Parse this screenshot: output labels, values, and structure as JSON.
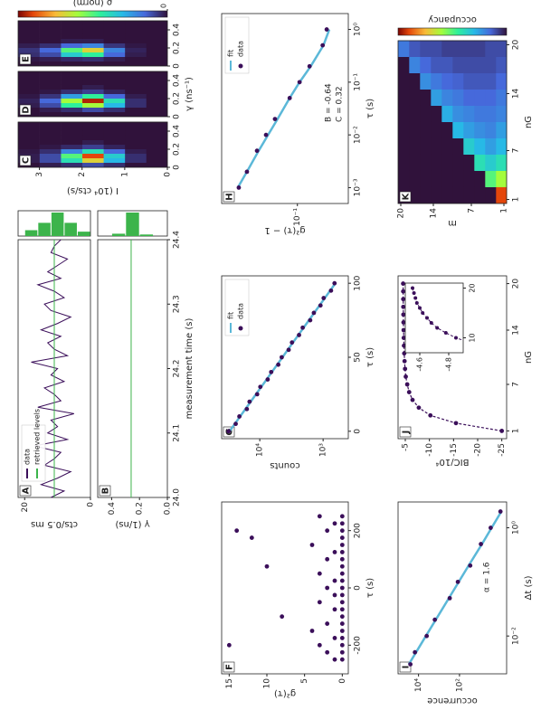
{
  "chart_data": [
    {
      "type": "line",
      "label": "A",
      "ylabel": "cts/0.5 ms",
      "x": [
        24,
        24.01,
        24.02,
        24.03,
        24.04,
        24.05,
        24.06,
        24.07,
        24.08,
        24.09,
        24.1,
        24.11,
        24.12,
        24.13,
        24.14,
        24.15,
        24.16,
        24.17,
        24.18,
        24.19,
        24.2,
        24.21,
        24.22,
        24.23,
        24.24,
        24.25,
        24.26,
        24.27,
        24.28,
        24.29,
        24.3,
        24.31,
        24.32,
        24.33,
        24.34,
        24.35,
        24.36,
        24.37,
        24.38,
        24.39,
        24.4
      ],
      "series": [
        {
          "name": "data",
          "color": "#3b0f5a",
          "values": [
            12,
            8,
            15,
            10,
            6,
            14,
            11,
            9,
            17,
            7,
            13,
            10,
            12,
            5,
            16,
            9,
            11,
            14,
            8,
            12,
            10,
            18,
            7,
            11,
            13,
            9,
            15,
            10,
            6,
            12,
            14,
            8,
            11,
            16,
            9,
            13,
            10,
            7,
            12,
            11,
            9
          ]
        },
        {
          "name": "retrieved levels",
          "color": "#3cb44b",
          "values": [
            11,
            11,
            11,
            11,
            11,
            11,
            11,
            11,
            11,
            11,
            11,
            11,
            11,
            11,
            11,
            11,
            11,
            11,
            11,
            11,
            11,
            11,
            11,
            11,
            11,
            11,
            11,
            11,
            11,
            11,
            11,
            11,
            11,
            11,
            11,
            11,
            11,
            11,
            11,
            11,
            11
          ]
        }
      ],
      "legend": "upper left",
      "xlim": [
        24,
        24.4
      ],
      "ylim": [
        0,
        22
      ],
      "yticks": [
        0,
        20
      ],
      "histogram": {
        "bins": [
          0,
          4,
          8,
          12,
          16,
          20
        ],
        "counts": [
          3,
          9,
          16,
          9,
          4
        ],
        "color": "#3cb44b"
      }
    },
    {
      "type": "line",
      "label": "B",
      "ylabel": "γ (1/ns)",
      "xlabel": "measurement time (s)",
      "x": [
        24,
        24.01,
        24.02,
        24.03,
        24.04,
        24.05,
        24.06,
        24.07,
        24.08,
        24.09,
        24.1,
        24.11,
        24.12,
        24.13,
        24.14,
        24.15,
        24.16,
        24.17,
        24.18,
        24.19,
        24.2,
        24.21,
        24.22,
        24.23,
        24.24,
        24.25,
        24.26,
        24.27,
        24.28,
        24.29,
        24.3,
        24.31,
        24.32,
        24.33,
        24.34,
        24.35,
        24.36,
        24.37,
        24.38,
        24.39,
        24.4
      ],
      "values": [
        0.26,
        0.26,
        0.26,
        0.26,
        0.26,
        0.26,
        0.26,
        0.26,
        0.26,
        0.26,
        0.26,
        0.26,
        0.26,
        0.26,
        0.26,
        0.26,
        0.26,
        0.26,
        0.26,
        0.26,
        0.26,
        0.26,
        0.26,
        0.26,
        0.26,
        0.26,
        0.26,
        0.26,
        0.26,
        0.26,
        0.26,
        0.26,
        0.26,
        0.26,
        0.26,
        0.26,
        0.26,
        0.26,
        0.26,
        0.26,
        0.26
      ],
      "color": "#3cb44b",
      "xlim": [
        24,
        24.4
      ],
      "ylim": [
        0,
        0.5
      ],
      "xticks": [
        {
          "value": 24,
          "label": "24.0"
        },
        24.1,
        24.2,
        24.3,
        24.4
      ],
      "yticks": [
        {
          "value": 0,
          "label": "0.0"
        },
        0.2,
        0.4
      ],
      "histogram": {
        "bins": [
          0,
          0.1,
          0.2,
          0.3,
          0.4,
          0.5
        ],
        "counts": [
          0,
          2,
          30,
          3,
          0
        ],
        "color": "#3cb44b"
      }
    },
    {
      "type": "heatmap",
      "label": "C",
      "ylabel": "I (10⁴ cts/s)",
      "colormap": "turbo",
      "zlim": [
        0,
        1
      ],
      "xlim": [
        0,
        0.5
      ],
      "ylim": [
        0,
        3.5
      ],
      "xticks": [
        0,
        0.2,
        0.4
      ],
      "yticks": [
        0,
        1,
        2,
        3
      ],
      "z": [
        [
          0,
          0,
          0,
          0,
          0,
          0,
          0,
          0,
          0,
          0
        ],
        [
          0,
          0.05,
          0.05,
          0.02,
          0,
          0,
          0,
          0,
          0,
          0
        ],
        [
          0.05,
          0.3,
          0.35,
          0.15,
          0.03,
          0,
          0,
          0,
          0,
          0
        ],
        [
          0.1,
          0.7,
          0.9,
          0.4,
          0.08,
          0.02,
          0,
          0,
          0,
          0
        ],
        [
          0.05,
          0.4,
          0.5,
          0.2,
          0.04,
          0,
          0,
          0,
          0,
          0
        ],
        [
          0.02,
          0.1,
          0.1,
          0.05,
          0.01,
          0,
          0,
          0,
          0,
          0
        ],
        [
          0,
          0.02,
          0.02,
          0.01,
          0,
          0,
          0,
          0,
          0,
          0
        ]
      ]
    },
    {
      "type": "heatmap",
      "label": "D",
      "xlabel": "γ (ns⁻¹)",
      "colormap": "turbo",
      "zlim": [
        0,
        1
      ],
      "xlim": [
        0,
        0.5
      ],
      "ylim": [
        0,
        3.5
      ],
      "xticks": [
        0,
        0.2,
        0.4
      ],
      "z": [
        [
          0,
          0,
          0,
          0,
          0,
          0,
          0,
          0,
          0,
          0
        ],
        [
          0,
          0,
          0.05,
          0.05,
          0.02,
          0,
          0,
          0,
          0,
          0
        ],
        [
          0,
          0.05,
          0.3,
          0.4,
          0.15,
          0.03,
          0,
          0,
          0,
          0
        ],
        [
          0,
          0.1,
          0.6,
          0.95,
          0.45,
          0.08,
          0.02,
          0,
          0,
          0
        ],
        [
          0,
          0.05,
          0.45,
          0.6,
          0.25,
          0.05,
          0,
          0,
          0,
          0
        ],
        [
          0,
          0.02,
          0.1,
          0.15,
          0.06,
          0.01,
          0,
          0,
          0,
          0
        ],
        [
          0,
          0,
          0.02,
          0.03,
          0.01,
          0,
          0,
          0,
          0,
          0
        ]
      ]
    },
    {
      "type": "heatmap",
      "label": "E",
      "colormap": "turbo",
      "zlim": [
        0,
        1
      ],
      "xlim": [
        0,
        0.5
      ],
      "ylim": [
        0,
        3.5
      ],
      "xticks": [
        0,
        0.2,
        0.4
      ],
      "z": [
        [
          0,
          0,
          0,
          0,
          0,
          0,
          0,
          0,
          0,
          0
        ],
        [
          0,
          0,
          0.02,
          0.03,
          0.01,
          0,
          0,
          0,
          0,
          0
        ],
        [
          0,
          0.02,
          0.15,
          0.2,
          0.06,
          0,
          0,
          0,
          0,
          0
        ],
        [
          0,
          0.05,
          0.45,
          0.7,
          0.2,
          0.02,
          0,
          0,
          0,
          0
        ],
        [
          0,
          0.04,
          0.35,
          0.5,
          0.15,
          0.02,
          0,
          0,
          0,
          0
        ],
        [
          0,
          0.02,
          0.1,
          0.15,
          0.05,
          0,
          0,
          0,
          0,
          0
        ],
        [
          0,
          0.01,
          0.05,
          0.06,
          0.02,
          0,
          0,
          0,
          0,
          0
        ]
      ],
      "colorbar": {
        "label": "ρ (norm)",
        "ticks": [
          0
        ]
      }
    },
    {
      "type": "scatter",
      "label": "F",
      "xlabel": "τ (s)",
      "ylabel": "g²(τ)",
      "color": "#3b0f5a",
      "x": [
        -250,
        -250,
        -225,
        -225,
        -200,
        -200,
        -200,
        -175,
        -175,
        -150,
        -150,
        -125,
        -125,
        -100,
        -100,
        -75,
        -75,
        -50,
        -50,
        -25,
        -25,
        0,
        0,
        25,
        25,
        50,
        50,
        75,
        75,
        100,
        100,
        125,
        125,
        150,
        150,
        175,
        175,
        200,
        200,
        200,
        225,
        225,
        250,
        250
      ],
      "values": [
        0,
        1,
        0,
        2,
        0,
        3,
        15,
        0,
        1,
        0,
        4,
        0,
        2,
        0,
        8,
        0,
        1,
        0,
        3,
        0,
        1,
        0,
        2,
        0,
        1,
        0,
        3,
        0,
        10,
        0,
        2,
        0,
        1,
        0,
        4,
        0,
        12,
        0,
        2,
        14,
        0,
        1,
        0,
        3
      ],
      "xlim": [
        -300,
        300
      ],
      "ylim": [
        -0.8,
        16
      ],
      "xticks": [
        -200,
        0,
        200
      ],
      "yticks": [
        0,
        5,
        10,
        15
      ]
    },
    {
      "type": "scatter",
      "label": "G",
      "xlabel": "τ (s)",
      "ylabel": "counts",
      "ylog": true,
      "legend": "upper right",
      "x": [
        0,
        5,
        10,
        15,
        20,
        25,
        30,
        35,
        40,
        45,
        50,
        55,
        60,
        65,
        70,
        75,
        80,
        85,
        90,
        95,
        100
      ],
      "series": [
        {
          "name": "fit",
          "mode": "line",
          "color": "#5bb8d8",
          "values": [
            30000,
            24750,
            20420,
            16850,
            13900,
            11470,
            9460,
            7800,
            6440,
            5310,
            4380,
            3620,
            2985,
            2460,
            2030,
            1675,
            1380,
            1140,
            940,
            775,
            640
          ]
        },
        {
          "name": "data",
          "mode": "markers",
          "color": "#3b0f5a",
          "values": [
            31000,
            24000,
            21000,
            16000,
            14500,
            11000,
            9800,
            7500,
            6600,
            5100,
            4500,
            3500,
            3100,
            2400,
            2100,
            1600,
            1400,
            1100,
            980,
            750,
            660
          ]
        }
      ],
      "xlim": [
        -5,
        105
      ],
      "ylim": [
        400,
        40000
      ],
      "xticks": [
        0,
        50,
        100
      ],
      "yticks": [
        {
          "value": 1000,
          "label": "10³"
        },
        {
          "value": 10000,
          "label": "10⁴"
        }
      ]
    },
    {
      "type": "scatter",
      "label": "H",
      "xlabel": "τ (s)",
      "ylabel": "g²(τ) − 1",
      "xlog": true,
      "ylog": true,
      "legend": "upper right",
      "annotations": [
        "B = -0.64",
        "C = 0.32"
      ],
      "x": [
        0.001,
        0.002,
        0.005,
        0.01,
        0.02,
        0.05,
        0.1,
        0.2,
        0.5,
        1
      ],
      "series": [
        {
          "name": "fit",
          "mode": "line",
          "color": "#5bb8d8",
          "values": [
            0.41,
            0.33,
            0.25,
            0.2,
            0.16,
            0.12,
            0.095,
            0.073,
            0.054,
            0.047
          ]
        },
        {
          "name": "data",
          "mode": "markers",
          "color": "#3b0f5a",
          "values": [
            0.4,
            0.33,
            0.26,
            0.21,
            0.17,
            0.12,
            0.095,
            0.075,
            0.055,
            0.05
          ]
        }
      ],
      "xlim": [
        0.0005,
        2
      ],
      "ylim": [
        0.03,
        0.6
      ],
      "xticks": [
        {
          "value": 0.001,
          "label": "10⁻³"
        },
        {
          "value": 0.01,
          "label": "10⁻²"
        },
        {
          "value": 0.1,
          "label": "10⁻¹"
        },
        {
          "value": 1,
          "label": "10⁰"
        }
      ],
      "yticks": [
        {
          "value": 0.1,
          "label": "10⁻¹"
        }
      ]
    },
    {
      "type": "scatter",
      "label": "I",
      "xlabel": "Δt (s)",
      "ylabel": "occurrence",
      "xlog": true,
      "ylog": true,
      "annotations": [
        "α = 1.6"
      ],
      "x": [
        0.003,
        0.005,
        0.01,
        0.02,
        0.05,
        0.1,
        0.2,
        0.5,
        1,
        2
      ],
      "series": [
        {
          "mode": "line",
          "color": "#5bb8d8",
          "values": [
            30000,
            13200,
            4380,
            1440,
            330,
            109,
            36,
            8,
            2.7,
            0.9
          ]
        },
        {
          "mode": "markers",
          "color": "#3b0f5a",
          "values": [
            25000,
            15000,
            4000,
            1600,
            300,
            120,
            30,
            9,
            3,
            1
          ]
        }
      ],
      "xlim": [
        0.002,
        3
      ],
      "ylim": [
        0.5,
        100000
      ],
      "xticks": [
        {
          "value": 0.01,
          "label": "10⁻²"
        },
        {
          "value": 1,
          "label": "10⁰"
        }
      ],
      "yticks": [
        {
          "value": 100,
          "label": "10²"
        },
        {
          "value": 10000,
          "label": "10⁴"
        }
      ]
    },
    {
      "type": "line",
      "label": "J",
      "xlabel": "nG",
      "ylabel": "BIC/10⁴",
      "markers": true,
      "dashed": true,
      "color": "#3b0f5a",
      "x": [
        1,
        2,
        3,
        4,
        5,
        6,
        7,
        8,
        9,
        10,
        11,
        12,
        13,
        14,
        15,
        16,
        17,
        18,
        19,
        20
      ],
      "values": [
        -25,
        -15.5,
        -10.2,
        -7.8,
        -6.5,
        -5.8,
        -5.4,
        -5.1,
        -4.95,
        -4.85,
        -4.78,
        -4.72,
        -4.68,
        -4.65,
        -4.62,
        -4.6,
        -4.58,
        -4.57,
        -4.56,
        -4.55
      ],
      "xlim": [
        0,
        21
      ],
      "ylim": [
        -26,
        -3.5
      ],
      "xticks": [
        1,
        7,
        14,
        20
      ],
      "yticks": [
        -25,
        -20,
        -15,
        -10,
        -5
      ],
      "inset": {
        "xlim": [
          7,
          21
        ],
        "ylim": [
          -4.9,
          -4.5
        ],
        "xticks": [
          10,
          20
        ],
        "yticks": [
          -4.8,
          -4.6
        ]
      }
    },
    {
      "type": "heatmap",
      "label": "K",
      "xlabel": "nG",
      "ylabel": "m",
      "colormap": "turbo",
      "zlim": [
        0,
        1
      ],
      "xlim": [
        0.5,
        20.5
      ],
      "ylim": [
        0.5,
        20.5
      ],
      "xticks": [
        1,
        7,
        14,
        20
      ],
      "yticks": [
        1,
        7,
        14,
        20
      ],
      "z": [
        [
          0.9,
          0.6,
          0.4,
          0.3,
          0.25,
          0.2,
          0.18,
          0.15,
          0.12,
          0.1
        ],
        [
          0,
          0.5,
          0.35,
          0.25,
          0.2,
          0.18,
          0.15,
          0.12,
          0.1,
          0.1
        ],
        [
          0,
          0,
          0.4,
          0.3,
          0.22,
          0.18,
          0.15,
          0.12,
          0.1,
          0.08
        ],
        [
          0,
          0,
          0,
          0.35,
          0.25,
          0.2,
          0.15,
          0.12,
          0.1,
          0.08
        ],
        [
          0,
          0,
          0,
          0,
          0.3,
          0.22,
          0.18,
          0.14,
          0.1,
          0.08
        ],
        [
          0,
          0,
          0,
          0,
          0,
          0.28,
          0.2,
          0.15,
          0.12,
          0.08
        ],
        [
          0,
          0,
          0,
          0,
          0,
          0,
          0.25,
          0.18,
          0.12,
          0.1
        ],
        [
          0,
          0,
          0,
          0,
          0,
          0,
          0,
          0.22,
          0.15,
          0.1
        ],
        [
          0,
          0,
          0,
          0,
          0,
          0,
          0,
          0,
          0.2,
          0.12
        ],
        [
          0,
          0,
          0,
          0,
          0,
          0,
          0,
          0,
          0,
          0.18
        ]
      ],
      "colorbar": {
        "label": "occupancy"
      }
    }
  ]
}
